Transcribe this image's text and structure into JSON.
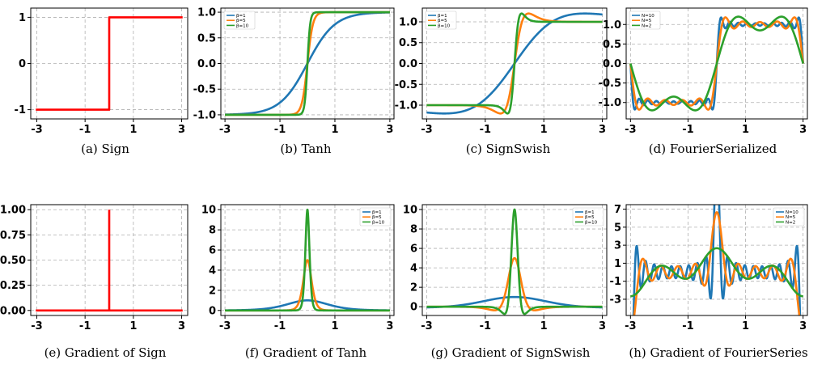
{
  "chart_data": [
    {
      "type": "line",
      "caption": "(a)  Sign",
      "xticks": [
        "-3",
        "-1",
        "1",
        "3"
      ],
      "yticks": [
        "1",
        "0",
        "-1"
      ],
      "xlim": [
        -3.25,
        3.25
      ],
      "ylim": [
        -1.2,
        1.2
      ],
      "ytick_values": [
        1,
        0,
        -1
      ],
      "grid": true,
      "legend": null,
      "series": [
        {
          "color": "#ff0000",
          "fn": "sign"
        }
      ]
    },
    {
      "type": "line",
      "caption": "(b)  Tanh",
      "xticks": [
        "-3",
        "-1",
        "1",
        "3"
      ],
      "yticks": [
        "1.0",
        "0.5",
        "0.0",
        "-0.5",
        "-1.0"
      ],
      "xlim": [
        -3.15,
        3.15
      ],
      "ylim": [
        -1.08,
        1.08
      ],
      "ytick_values": [
        1,
        0.5,
        0,
        -0.5,
        -1
      ],
      "grid": true,
      "legend": "top-left",
      "series": [
        {
          "name": "β=1",
          "color": "#1f77b4",
          "fn": "tanh",
          "beta": 1
        },
        {
          "name": "β=5",
          "color": "#ff7f0e",
          "fn": "tanh",
          "beta": 5
        },
        {
          "name": "β=10",
          "color": "#2ca02c",
          "fn": "tanh",
          "beta": 10
        }
      ]
    },
    {
      "type": "line",
      "caption": "(c)  SignSwish",
      "xticks": [
        "-3",
        "-1",
        "1",
        "3"
      ],
      "yticks": [
        "1.0",
        "0.5",
        "0.0",
        "-0.5",
        "-1.0"
      ],
      "xlim": [
        -3.15,
        3.15
      ],
      "ylim": [
        -1.33,
        1.33
      ],
      "ytick_values": [
        1,
        0.5,
        0,
        -0.5,
        -1
      ],
      "grid": true,
      "legend": "top-left",
      "series": [
        {
          "name": "β=1",
          "color": "#1f77b4",
          "fn": "signswish",
          "beta": 1
        },
        {
          "name": "β=5",
          "color": "#ff7f0e",
          "fn": "signswish",
          "beta": 5
        },
        {
          "name": "β=10",
          "color": "#2ca02c",
          "fn": "signswish",
          "beta": 10
        }
      ]
    },
    {
      "type": "line",
      "caption": "(d)  FourierSerialized",
      "xticks": [
        "-3",
        "-1",
        "1",
        "3"
      ],
      "yticks": [
        "1.0",
        "0.5",
        "0.0",
        "-0.5",
        "-1.0"
      ],
      "xlim": [
        -3.15,
        3.15
      ],
      "ylim": [
        -1.42,
        1.42
      ],
      "ytick_values": [
        1,
        0.5,
        0,
        -0.5,
        -1
      ],
      "grid": true,
      "legend": "top-left",
      "series": [
        {
          "name": "N=10",
          "color": "#1f77b4",
          "fn": "fourier",
          "N": 10
        },
        {
          "name": "N=5",
          "color": "#ff7f0e",
          "fn": "fourier",
          "N": 5
        },
        {
          "name": "N=2",
          "color": "#2ca02c",
          "fn": "fourier",
          "N": 2
        }
      ]
    },
    {
      "type": "line",
      "caption": "(e)  Gradient of Sign",
      "xticks": [
        "-3",
        "-1",
        "1",
        "3"
      ],
      "yticks": [
        "1.00",
        "0.75",
        "0.50",
        "0.25",
        "0.00"
      ],
      "xlim": [
        -3.25,
        3.25
      ],
      "ylim": [
        -0.05,
        1.05
      ],
      "ytick_values": [
        1,
        0.75,
        0.5,
        0.25,
        0
      ],
      "grid": true,
      "legend": null,
      "series": [
        {
          "color": "#ff0000",
          "fn": "dsign"
        }
      ]
    },
    {
      "type": "line",
      "caption": "(f)  Gradient of Tanh",
      "xticks": [
        "-3",
        "-1",
        "1",
        "3"
      ],
      "yticks": [
        "10",
        "8",
        "6",
        "4",
        "2",
        "0"
      ],
      "xlim": [
        -3.15,
        3.15
      ],
      "ylim": [
        -0.5,
        10.5
      ],
      "ytick_values": [
        10,
        8,
        6,
        4,
        2,
        0
      ],
      "grid": true,
      "legend": "top-right",
      "series": [
        {
          "name": "β=1",
          "color": "#1f77b4",
          "fn": "dtanh",
          "beta": 1
        },
        {
          "name": "β=5",
          "color": "#ff7f0e",
          "fn": "dtanh",
          "beta": 5
        },
        {
          "name": "β=10",
          "color": "#2ca02c",
          "fn": "dtanh",
          "beta": 10
        }
      ]
    },
    {
      "type": "line",
      "caption": "(g)  Gradient of SignSwish",
      "xticks": [
        "-3",
        "-1",
        "1",
        "3"
      ],
      "yticks": [
        "10",
        "8",
        "6",
        "4",
        "2",
        "0"
      ],
      "xlim": [
        -3.15,
        3.15
      ],
      "ylim": [
        -0.9,
        10.5
      ],
      "ytick_values": [
        10,
        8,
        6,
        4,
        2,
        0
      ],
      "grid": true,
      "legend": "top-right",
      "series": [
        {
          "name": "β=1",
          "color": "#1f77b4",
          "fn": "dsignswish",
          "beta": 1
        },
        {
          "name": "β=5",
          "color": "#ff7f0e",
          "fn": "dsignswish",
          "beta": 5
        },
        {
          "name": "β=10",
          "color": "#2ca02c",
          "fn": "dsignswish",
          "beta": 10
        }
      ]
    },
    {
      "type": "line",
      "caption": "(h)  Gradient of FourierSeries",
      "xticks": [
        "-3",
        "-1",
        "1",
        "3"
      ],
      "yticks": [
        "7",
        "5",
        "3",
        "1",
        "-1",
        "-3"
      ],
      "xlim": [
        -3.15,
        3.15
      ],
      "ylim": [
        -4.8,
        7.5
      ],
      "ytick_values": [
        7,
        5,
        3,
        1,
        -1,
        -3
      ],
      "grid": true,
      "legend": "top-right",
      "series": [
        {
          "name": "N=10",
          "color": "#1f77b4",
          "fn": "dfourier",
          "N": 10
        },
        {
          "name": "N=5",
          "color": "#ff7f0e",
          "fn": "dfourier",
          "N": 5
        },
        {
          "name": "N=2",
          "color": "#2ca02c",
          "fn": "dfourier",
          "N": 2
        }
      ]
    }
  ]
}
